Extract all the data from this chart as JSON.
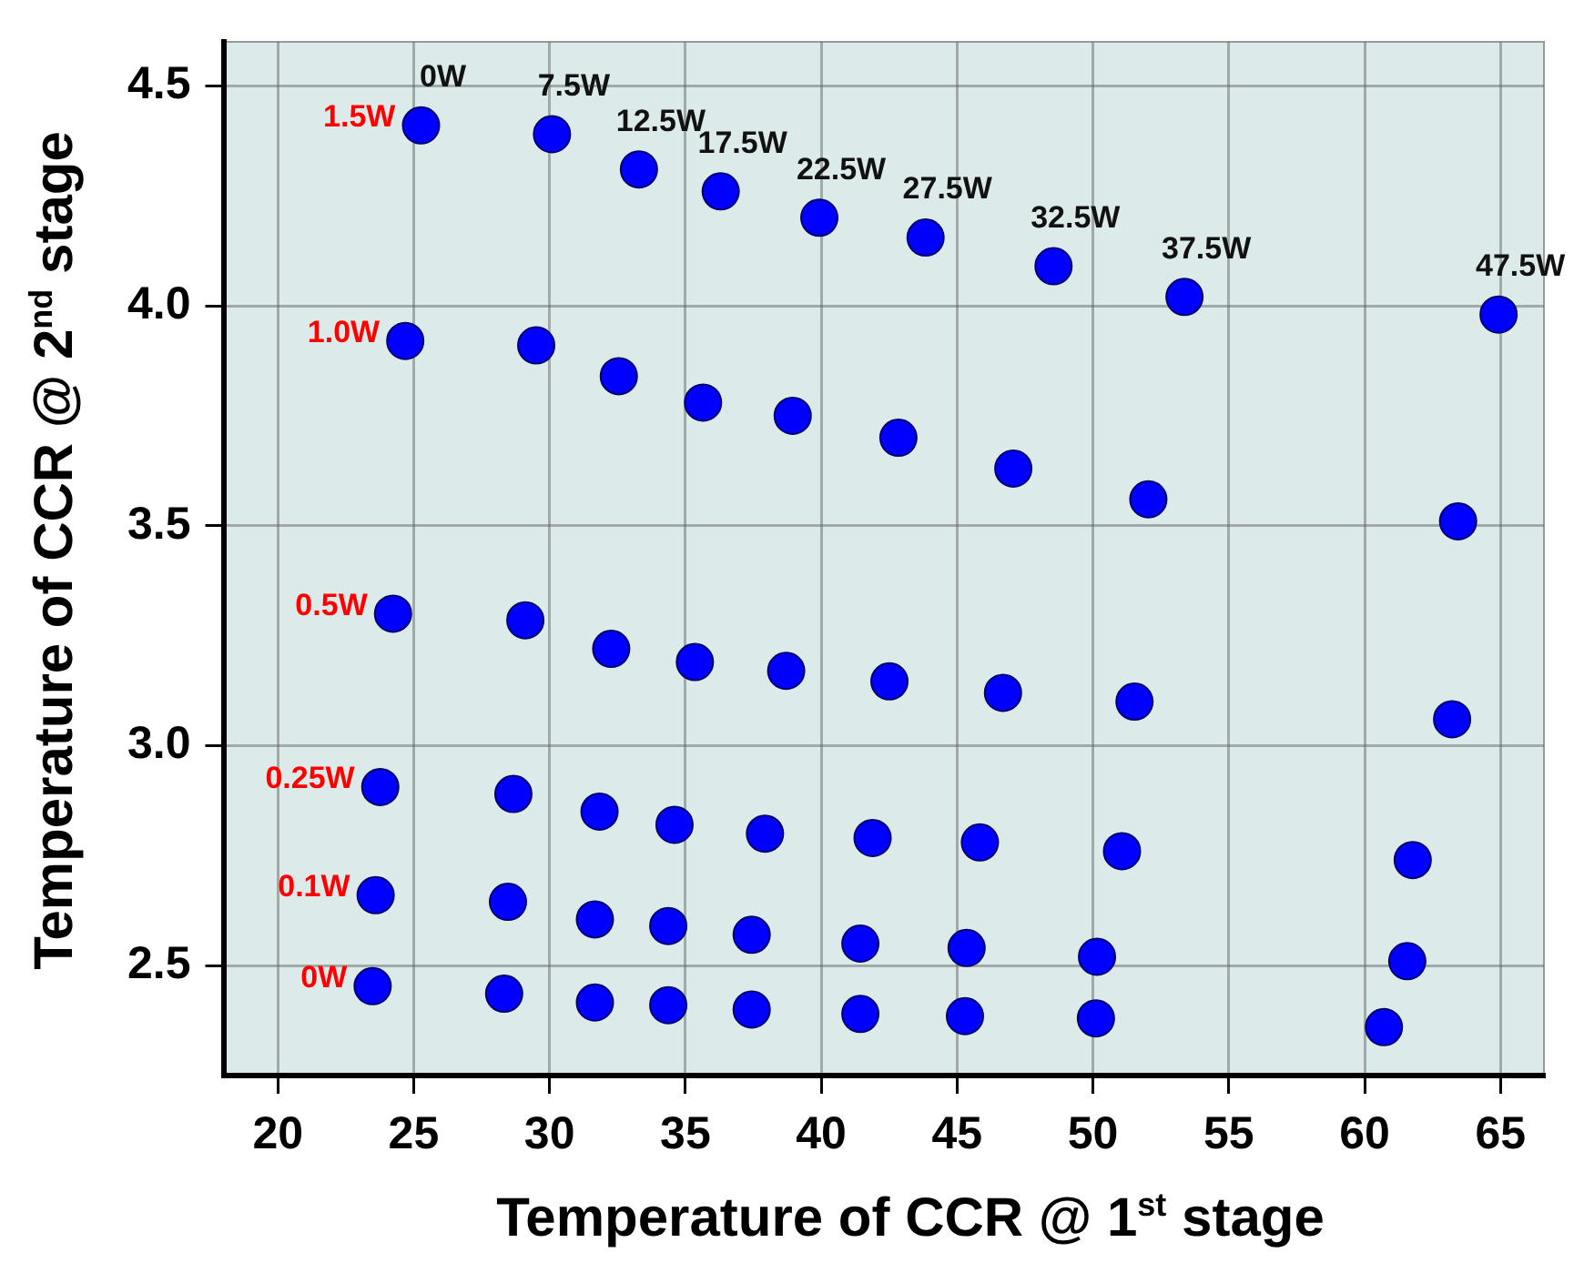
{
  "chart_data": {
    "type": "scatter",
    "xlabel": "Temperature of CCR @ 1$^{st}$ stage",
    "ylabel": "Temperature of CCR @ 2$^{nd}$ stage",
    "xlim": [
      18,
      66.6
    ],
    "xticks": [
      20,
      25,
      30,
      35,
      40,
      45,
      50,
      55,
      60,
      65
    ],
    "ylim": [
      2.25,
      4.6
    ],
    "yticks": [
      2.5,
      {
        "value": 3,
        "label": "3.0"
      },
      3.5,
      {
        "value": 4,
        "label": "4.0"
      },
      4.5
    ],
    "grid": true,
    "marker": "circle",
    "legend": false,
    "series": [
      {
        "name": "1.5W",
        "color": "#0000ff",
        "x": [
          25.27,
          30.09,
          33.29,
          36.3,
          39.93,
          43.84,
          48.55,
          53.37,
          64.93
        ],
        "values": [
          4.41,
          4.39,
          4.31,
          4.26,
          4.2,
          4.155,
          4.09,
          4.02,
          3.98
        ]
      },
      {
        "name": "1.0W",
        "color": "#0000ff",
        "x": [
          24.69,
          29.51,
          32.55,
          35.65,
          38.95,
          42.84,
          47.07,
          52.04,
          63.44
        ],
        "values": [
          3.92,
          3.91,
          3.84,
          3.78,
          3.75,
          3.7,
          3.63,
          3.56,
          3.51
        ]
      },
      {
        "name": "0.5W",
        "color": "#0000ff",
        "x": [
          24.24,
          29.11,
          32.27,
          35.35,
          38.71,
          42.51,
          46.69,
          51.53,
          63.22
        ],
        "values": [
          3.3,
          3.285,
          3.22,
          3.19,
          3.17,
          3.146,
          3.12,
          3.1,
          3.06
        ]
      },
      {
        "name": "0.25W",
        "color": "#0000ff",
        "x": [
          23.77,
          28.67,
          31.84,
          34.6,
          37.93,
          41.89,
          45.84,
          51.07,
          61.77
        ],
        "values": [
          2.906,
          2.89,
          2.85,
          2.82,
          2.8,
          2.79,
          2.78,
          2.76,
          2.74
        ]
      },
      {
        "name": "0.1W",
        "color": "#0000ff",
        "x": [
          23.6,
          28.47,
          31.67,
          34.37,
          37.44,
          41.44,
          45.35,
          50.15,
          61.57
        ],
        "values": [
          2.66,
          2.645,
          2.605,
          2.59,
          2.57,
          2.55,
          2.54,
          2.52,
          2.51
        ]
      },
      {
        "name": "0W",
        "color": "#0000ff",
        "x": [
          23.49,
          28.33,
          31.67,
          34.37,
          37.44,
          41.44,
          45.29,
          50.11,
          60.71
        ],
        "values": [
          2.453,
          2.436,
          2.416,
          2.41,
          2.4,
          2.39,
          2.385,
          2.38,
          2.36
        ]
      }
    ],
    "annotations": [
      {
        "text": "0W",
        "x": 25.27,
        "y": 4.41
      },
      {
        "text": "7.5W",
        "x": 30.09,
        "y": 4.39
      },
      {
        "text": "12.5W",
        "x": 33.29,
        "y": 4.31
      },
      {
        "text": "17.5W",
        "x": 36.3,
        "y": 4.26
      },
      {
        "text": "22.5W",
        "x": 39.93,
        "y": 4.2
      },
      {
        "text": "27.5W",
        "x": 43.84,
        "y": 4.155
      },
      {
        "text": "32.5W",
        "x": 48.55,
        "y": 4.09
      },
      {
        "text": "37.5W",
        "x": 53.37,
        "y": 4.02
      },
      {
        "text": "47.5W",
        "x": 64.93,
        "y": 3.98
      }
    ]
  }
}
